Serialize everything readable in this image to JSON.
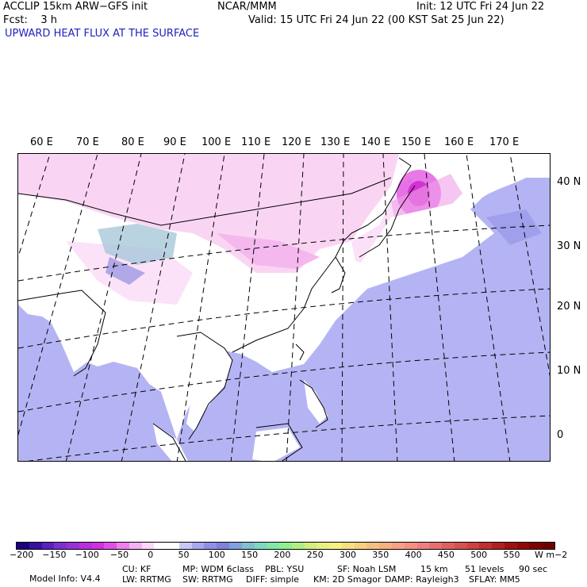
{
  "header": {
    "line1_left": "ACCLIP 15km ARW−GFS init",
    "line1_center": "NCAR/MMM",
    "line1_right": "Init: 12 UTC Fri 24 Jun 22",
    "line2_left": "Fcst:    3 h",
    "line2_right": "Valid: 15 UTC Fri 24 Jun 22 (00 KST Sat 25 Jun 22)",
    "title": "UPWARD HEAT FLUX AT THE SURFACE"
  },
  "map": {
    "longitude_labels": [
      "60 E",
      "70 E",
      "80 E",
      "90 E",
      "100 E",
      "110 E",
      "120 E",
      "130 E",
      "140 E",
      "150 E",
      "160 E",
      "170 E"
    ],
    "latitude_labels": [
      "40 N",
      "30 N",
      "20 N",
      "10 N",
      "0"
    ],
    "colors": {
      "ocean_negative": "#b4b4f4",
      "land_low": "#ffffff",
      "land_positive": "#f8c8f0",
      "hotspot": "#e040e0"
    }
  },
  "colorbar": {
    "ticks": [
      "−200",
      "−150",
      "−100",
      "−50",
      "0",
      "50",
      "100",
      "150",
      "200",
      "250",
      "300",
      "350",
      "400",
      "450",
      "500",
      "550"
    ],
    "units": "W m−2",
    "colors": [
      "#1a0080",
      "#3a10a0",
      "#5a20c0",
      "#7a30d0",
      "#9a30d8",
      "#b830e0",
      "#d030e0",
      "#e050e8",
      "#ee80ee",
      "#f6b0f4",
      "#fcd8fa",
      "#ffffff",
      "#ffffff",
      "#c8c8f8",
      "#a8a8f0",
      "#9090e8",
      "#8080e0",
      "#80a0e0",
      "#80c0d0",
      "#80d8c0",
      "#80e8a8",
      "#90f090",
      "#b0f080",
      "#d0f080",
      "#e8f080",
      "#f8f080",
      "#f8e080",
      "#f8d080",
      "#f8c080",
      "#f8b080",
      "#f8a080",
      "#f89080",
      "#f08080",
      "#e87070",
      "#e06060",
      "#d85050",
      "#d04040",
      "#c03030",
      "#b02020",
      "#a01010",
      "#900808",
      "#800000",
      "#700000"
    ]
  },
  "footer": {
    "line1": [
      "Model Info: V4.4",
      "CU: KF",
      "MP: WDM 6class",
      "PBL: YSU",
      "SF: Noah LSM",
      "15 km",
      "51 levels",
      "90 sec"
    ],
    "line2": [
      "LW: RRTMG",
      "SW: RRTMG",
      "DIFF: simple",
      "KM: 2D Smagor",
      "DAMP: Rayleigh3",
      "SFLAY: MM5"
    ]
  }
}
